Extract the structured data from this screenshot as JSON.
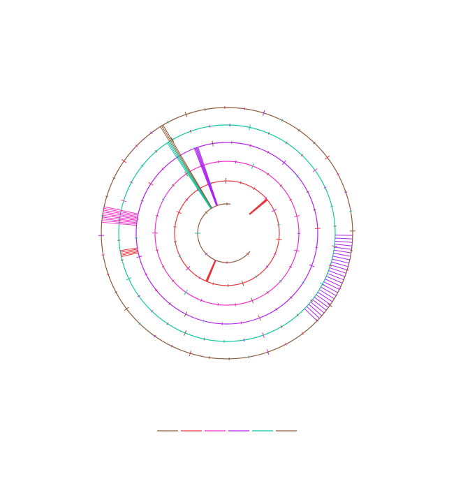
{
  "rings": [
    {
      "color": "#8c5a3c"
    },
    {
      "color": "#e8343c"
    },
    {
      "color": "#f030c8"
    },
    {
      "color": "#b020f0"
    },
    {
      "color": "#10c8a0"
    },
    {
      "color": "#8c5a3c"
    }
  ]
}
